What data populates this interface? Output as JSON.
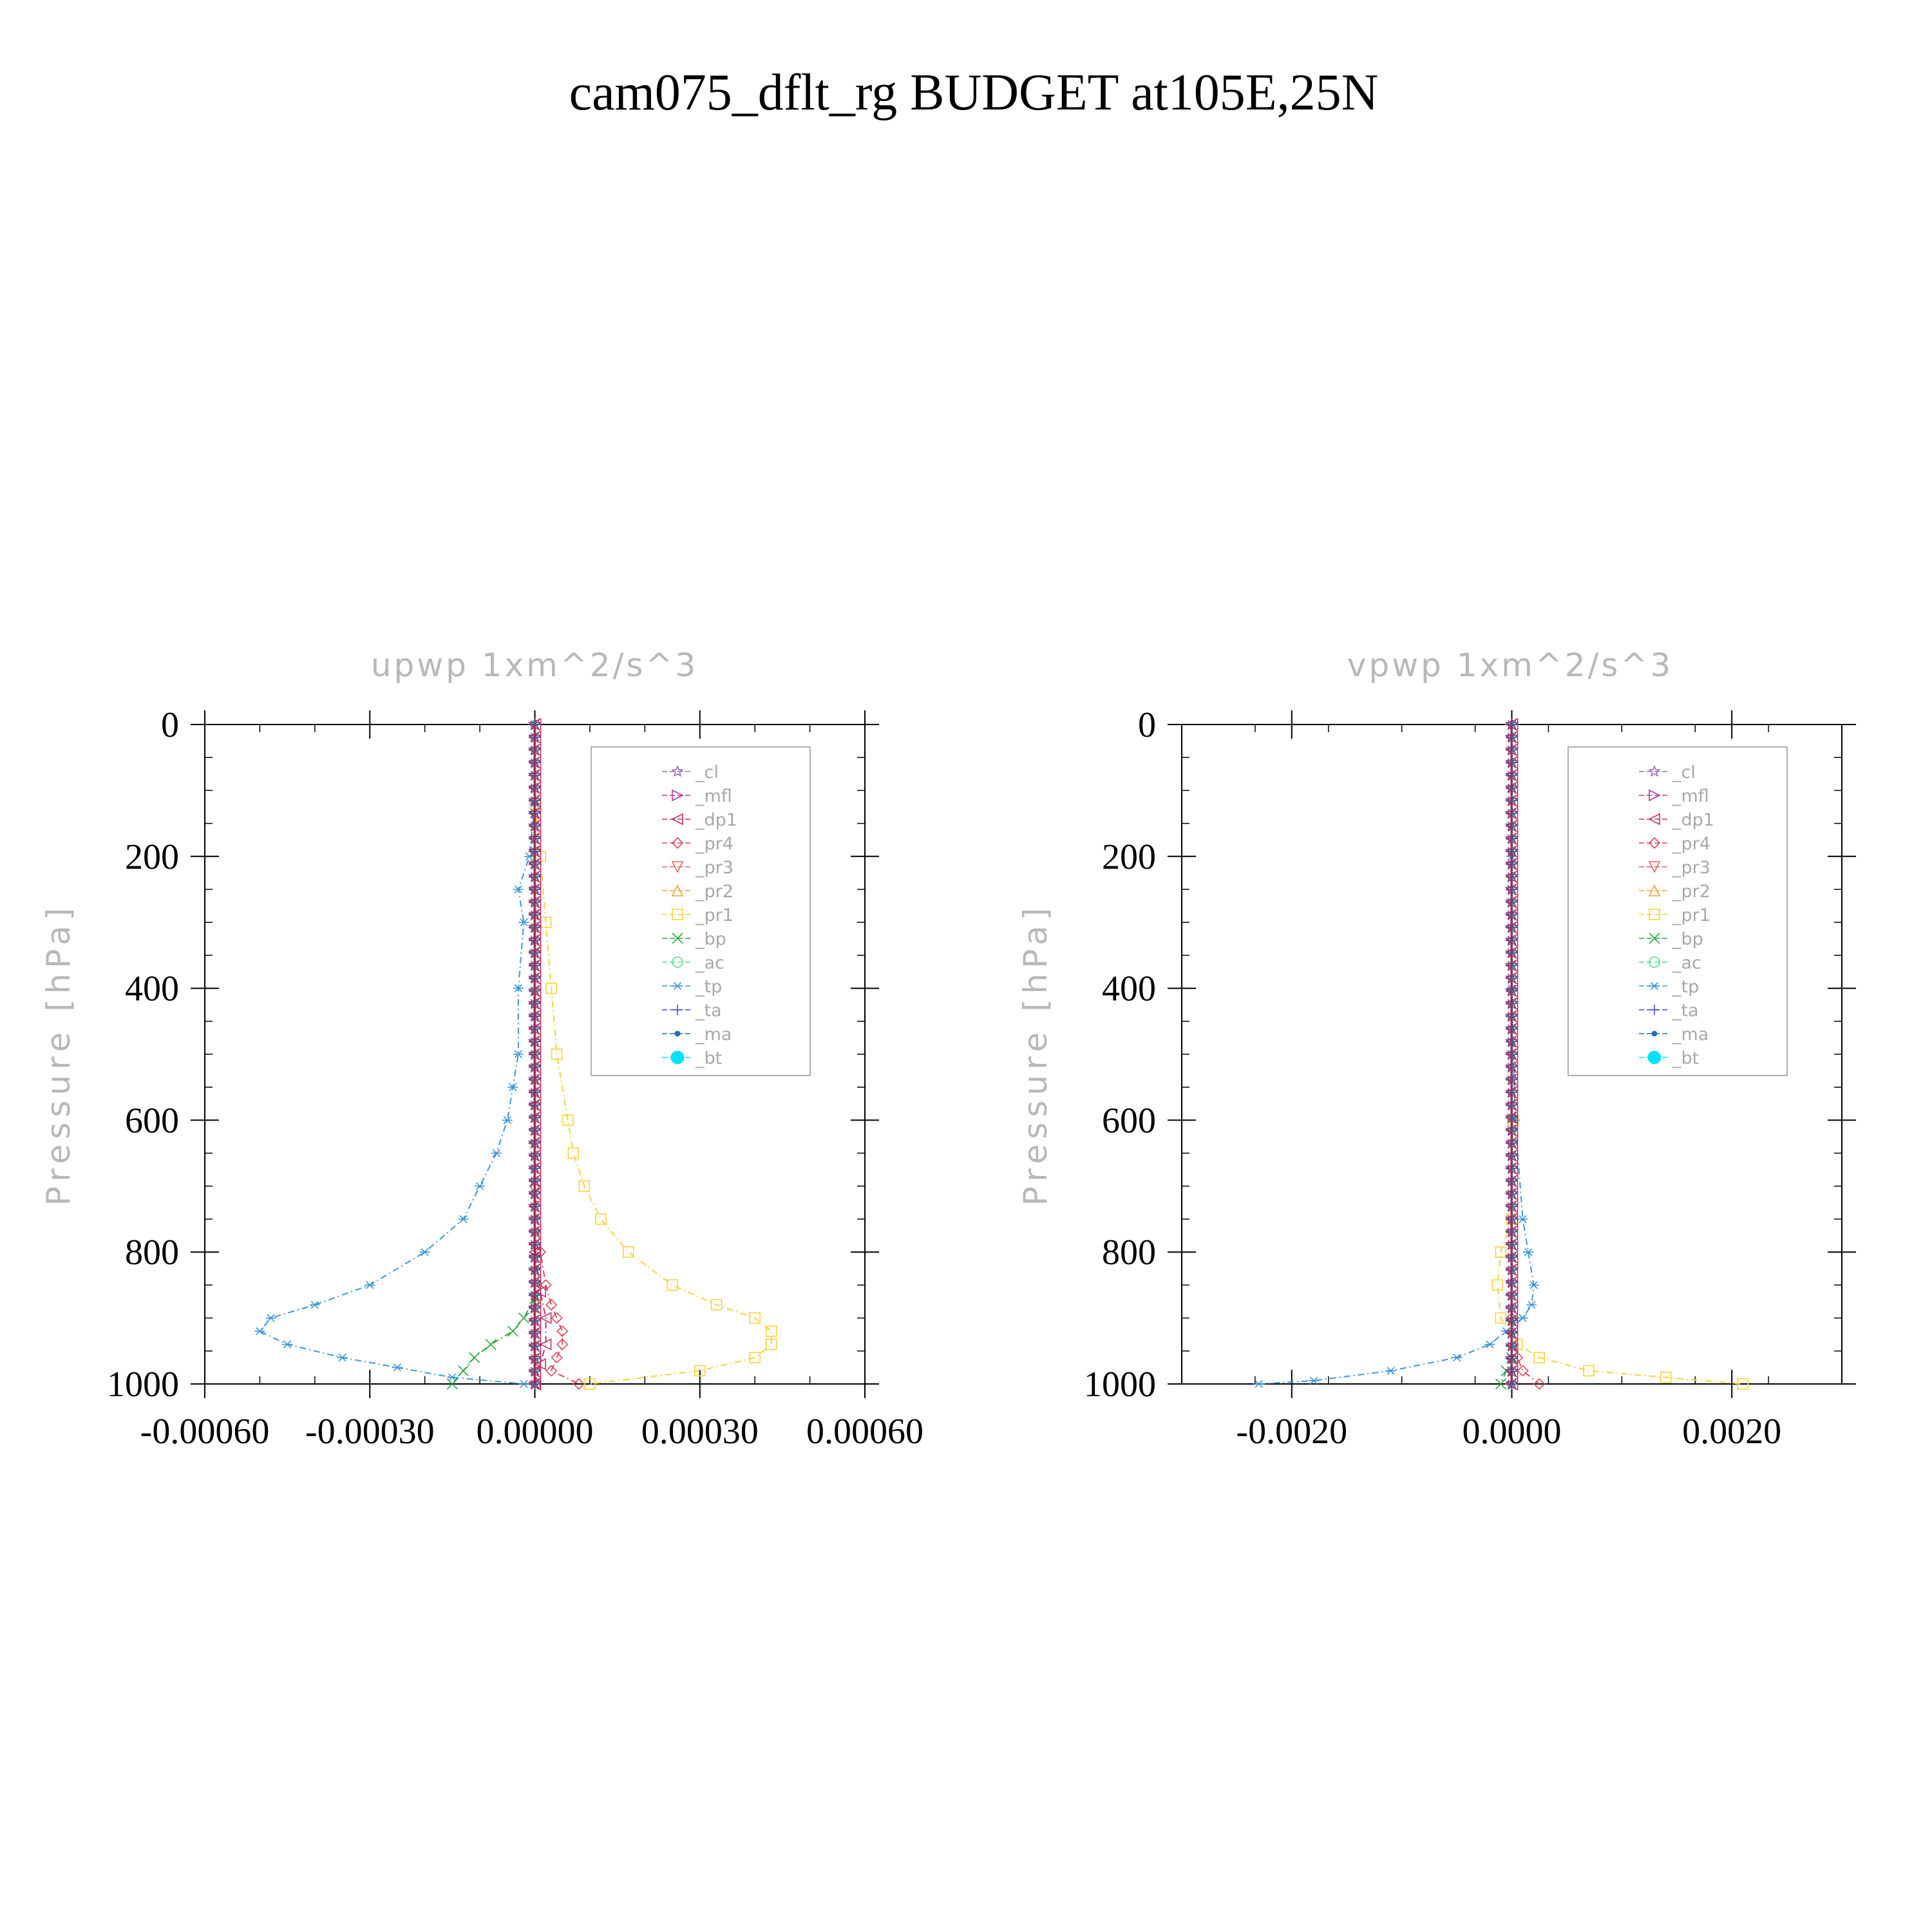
{
  "title": "cam075_dflt_rg  BUDGET at105E,25N",
  "legend_entries": [
    {
      "name": "_cl",
      "color": "#9d6bbd",
      "marker": "star"
    },
    {
      "name": "_mfl",
      "color": "#b03aa8",
      "marker": "tri-right"
    },
    {
      "name": "_dp1",
      "color": "#c4305e",
      "marker": "tri-left"
    },
    {
      "name": "_pr4",
      "color": "#d84a57",
      "marker": "diamond"
    },
    {
      "name": "_pr3",
      "color": "#e8645a",
      "marker": "tri-down"
    },
    {
      "name": "_pr2",
      "color": "#f2a23a",
      "marker": "tri-up"
    },
    {
      "name": "_pr1",
      "color": "#f6d23a",
      "marker": "square"
    },
    {
      "name": "_bp",
      "color": "#2ca83c",
      "marker": "x"
    },
    {
      "name": "_ac",
      "color": "#5ad88a",
      "marker": "circle"
    },
    {
      "name": "_tp",
      "color": "#3a96d8",
      "marker": "asterisk"
    },
    {
      "name": "_ta",
      "color": "#4a4ad8",
      "marker": "plus"
    },
    {
      "name": "_ma",
      "color": "#1a6fb8",
      "marker": "dot"
    },
    {
      "name": "_bt",
      "color": "#00e0ff",
      "marker": "filled-circle"
    }
  ],
  "chart_data": [
    {
      "type": "line",
      "title": "upwp   1xm^2/s^3",
      "ylabel": "Pressure [hPa]",
      "xlabel": "",
      "xlim": [
        -0.0006,
        0.0006
      ],
      "ylim": [
        0,
        1000
      ],
      "y_inverted": true,
      "xticks": [
        "-0.00060",
        "-0.00030",
        "0.00000",
        "0.00030",
        "0.00060"
      ],
      "xtick_values": [
        -0.0006,
        -0.0003,
        0.0,
        0.0003,
        0.0006
      ],
      "yticks": [
        "0",
        "200",
        "400",
        "600",
        "800",
        "1000"
      ],
      "ytick_values": [
        0,
        200,
        400,
        600,
        800,
        1000
      ],
      "legend": "top-right",
      "series": [
        {
          "name": "_tp",
          "y": [
            120,
            200,
            250,
            300,
            400,
            500,
            550,
            600,
            650,
            700,
            750,
            800,
            850,
            880,
            900,
            920,
            940,
            960,
            975,
            990,
            1000
          ],
          "x": [
            0.0,
            -1e-05,
            -3e-05,
            -2e-05,
            -3e-05,
            -3e-05,
            -4e-05,
            -5e-05,
            -7e-05,
            -0.0001,
            -0.00013,
            -0.0002,
            -0.0003,
            -0.0004,
            -0.00048,
            -0.0005,
            -0.00045,
            -0.00035,
            -0.00025,
            -0.00015,
            -2e-05
          ]
        },
        {
          "name": "_pr1",
          "y": [
            120,
            200,
            300,
            400,
            500,
            600,
            650,
            700,
            750,
            800,
            850,
            880,
            900,
            920,
            940,
            960,
            980,
            1000
          ],
          "x": [
            0.0,
            1e-05,
            2e-05,
            3e-05,
            4e-05,
            6e-05,
            7e-05,
            9e-05,
            0.00012,
            0.00017,
            0.00025,
            0.00033,
            0.0004,
            0.00043,
            0.00043,
            0.0004,
            0.0003,
            0.0001
          ]
        },
        {
          "name": "_pr4",
          "y": [
            700,
            800,
            850,
            880,
            900,
            920,
            940,
            960,
            980,
            1000
          ],
          "x": [
            0.0,
            1e-05,
            2e-05,
            3e-05,
            4e-05,
            5e-05,
            5e-05,
            4e-05,
            3e-05,
            8e-05
          ]
        },
        {
          "name": "_dp1",
          "y": [
            800,
            860,
            900,
            940,
            970,
            1000
          ],
          "x": [
            0.0,
            1e-05,
            2e-05,
            2e-05,
            1e-05,
            0.0
          ]
        },
        {
          "name": "_bp",
          "y": [
            870,
            900,
            920,
            940,
            960,
            980,
            1000
          ],
          "x": [
            0.0,
            -2e-05,
            -4e-05,
            -8e-05,
            -0.00011,
            -0.00013,
            -0.00015
          ]
        }
      ]
    },
    {
      "type": "line",
      "title": "vpwp   1xm^2/s^3",
      "ylabel": "Pressure [hPa]",
      "xlabel": "",
      "xlim": [
        -0.003,
        0.003
      ],
      "ylim": [
        0,
        1000
      ],
      "y_inverted": true,
      "xticks": [
        "-0.0020",
        "0.0000",
        "0.0020"
      ],
      "xtick_values": [
        -0.002,
        0.0,
        0.002
      ],
      "yticks": [
        "0",
        "200",
        "400",
        "600",
        "800",
        "1000"
      ],
      "ytick_values": [
        0,
        200,
        400,
        600,
        800,
        1000
      ],
      "legend": "top-right",
      "series": [
        {
          "name": "_tp",
          "y": [
            200,
            400,
            600,
            750,
            800,
            850,
            880,
            900,
            920,
            940,
            960,
            980,
            995,
            1000
          ],
          "x": [
            0.0,
            0.0,
            3e-05,
            0.0001,
            0.00015,
            0.0002,
            0.00018,
            0.0001,
            -5e-05,
            -0.0002,
            -0.0005,
            -0.0011,
            -0.0018,
            -0.0023
          ]
        },
        {
          "name": "_pr1",
          "y": [
            600,
            750,
            800,
            850,
            900,
            940,
            960,
            980,
            990,
            1000
          ],
          "x": [
            1e-05,
            0.0,
            -0.0001,
            -0.00013,
            -0.0001,
            5e-05,
            0.00025,
            0.0007,
            0.0014,
            0.0021
          ]
        },
        {
          "name": "_pr4",
          "y": [
            900,
            960,
            980,
            1000
          ],
          "x": [
            0.0,
            5e-05,
            0.0001,
            0.00025
          ]
        },
        {
          "name": "_bp",
          "y": [
            960,
            980,
            1000
          ],
          "x": [
            0.0,
            -5e-05,
            -0.0001
          ]
        }
      ]
    }
  ]
}
